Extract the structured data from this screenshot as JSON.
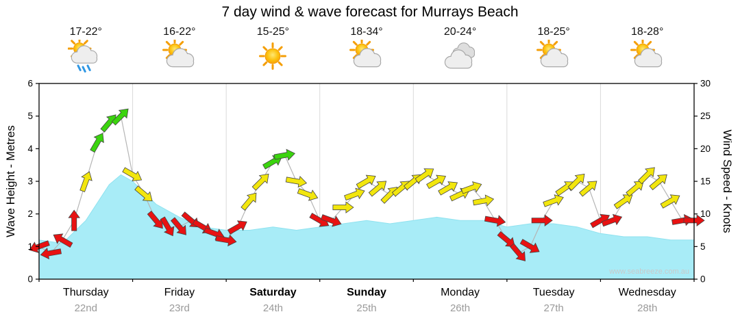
{
  "title": "7 day wind & wave forecast for Murrays Beach",
  "watermark": "www.seabreeze.com.au",
  "days": [
    {
      "name": "Thursday",
      "date": "22nd",
      "temp": "17-22°",
      "icon": "sun-cloud-rain",
      "bold": false
    },
    {
      "name": "Friday",
      "date": "23rd",
      "temp": "16-22°",
      "icon": "sun-cloud",
      "bold": false
    },
    {
      "name": "Saturday",
      "date": "24th",
      "temp": "15-25°",
      "icon": "sun",
      "bold": true
    },
    {
      "name": "Sunday",
      "date": "25th",
      "temp": "18-34°",
      "icon": "sun-cloud",
      "bold": true
    },
    {
      "name": "Monday",
      "date": "26th",
      "temp": "20-24°",
      "icon": "cloud",
      "bold": false
    },
    {
      "name": "Tuesday",
      "date": "27th",
      "temp": "18-25°",
      "icon": "sun-cloud",
      "bold": false
    },
    {
      "name": "Wednesday",
      "date": "28th",
      "temp": "18-28°",
      "icon": "sun-cloud",
      "bold": false
    }
  ],
  "chart_data": {
    "type": "combo",
    "subtypes": [
      "area",
      "wind-arrows"
    ],
    "title": "7 day wind & wave forecast for Murrays Beach",
    "x": {
      "unit": "hours",
      "range": [
        0,
        168
      ],
      "days": 7
    },
    "y_left": {
      "label": "Wave Height - Metres",
      "ticks": [
        0,
        1,
        2,
        3,
        4,
        5,
        6
      ],
      "range": [
        0,
        6
      ]
    },
    "y_right": {
      "label": "Wind Speed - Knots",
      "ticks": [
        0,
        5,
        10,
        15,
        20,
        25,
        30
      ],
      "range": [
        0,
        30
      ]
    },
    "wave_height_m": {
      "hours": [
        0,
        6,
        12,
        18,
        21,
        24,
        30,
        36,
        42,
        48,
        54,
        60,
        66,
        72,
        78,
        84,
        90,
        96,
        102,
        108,
        114,
        120,
        126,
        132,
        138,
        144,
        150,
        156,
        162,
        168
      ],
      "values": [
        1.2,
        1.1,
        1.8,
        2.9,
        3.2,
        3.0,
        2.3,
        1.9,
        1.6,
        1.5,
        1.5,
        1.6,
        1.5,
        1.6,
        1.7,
        1.8,
        1.7,
        1.8,
        1.9,
        1.8,
        1.8,
        1.6,
        1.7,
        1.7,
        1.6,
        1.4,
        1.3,
        1.3,
        1.2,
        1.2
      ]
    },
    "wind_knots": {
      "hours": [
        0,
        3,
        6,
        9,
        12,
        15,
        18,
        21,
        24,
        27,
        30,
        33,
        36,
        39,
        42,
        45,
        48,
        51,
        54,
        57,
        60,
        63,
        66,
        69,
        72,
        75,
        78,
        81,
        84,
        87,
        90,
        93,
        96,
        99,
        102,
        105,
        108,
        111,
        114,
        117,
        120,
        123,
        126,
        129,
        132,
        135,
        138,
        141,
        144,
        147,
        150,
        153,
        156,
        159,
        162,
        165,
        168
      ],
      "values": [
        5,
        4,
        6,
        9,
        15,
        21,
        24,
        25,
        16,
        13,
        9,
        8,
        8,
        9,
        8,
        7,
        6,
        8,
        12,
        15,
        18,
        19,
        15,
        13,
        9,
        9,
        11,
        13,
        15,
        14,
        13,
        14,
        15,
        16,
        15,
        14,
        13,
        14,
        12,
        9,
        6,
        4,
        5,
        9,
        12,
        14,
        15,
        14,
        9,
        9,
        12,
        14,
        16,
        15,
        12,
        9,
        9
      ],
      "dirs_deg": [
        250,
        260,
        300,
        0,
        20,
        30,
        40,
        45,
        120,
        130,
        140,
        150,
        140,
        130,
        120,
        110,
        100,
        60,
        40,
        45,
        60,
        80,
        100,
        110,
        120,
        110,
        90,
        70,
        60,
        50,
        45,
        50,
        50,
        55,
        60,
        60,
        65,
        70,
        80,
        100,
        130,
        140,
        120,
        90,
        70,
        55,
        45,
        50,
        60,
        70,
        55,
        50,
        45,
        50,
        60,
        80,
        90
      ]
    },
    "wind_color_scale": {
      "red_below_knots": 10,
      "yellow_below_knots": 17,
      "colors": {
        "red": "#e81212",
        "yellow": "#f2e60e",
        "green": "#3bd40e"
      }
    },
    "area_color": "#a8ecf7",
    "area_edge_color": "#8fe2ef",
    "grid_color": "#d9d9d9",
    "connector_color": "#b5b5b5"
  }
}
